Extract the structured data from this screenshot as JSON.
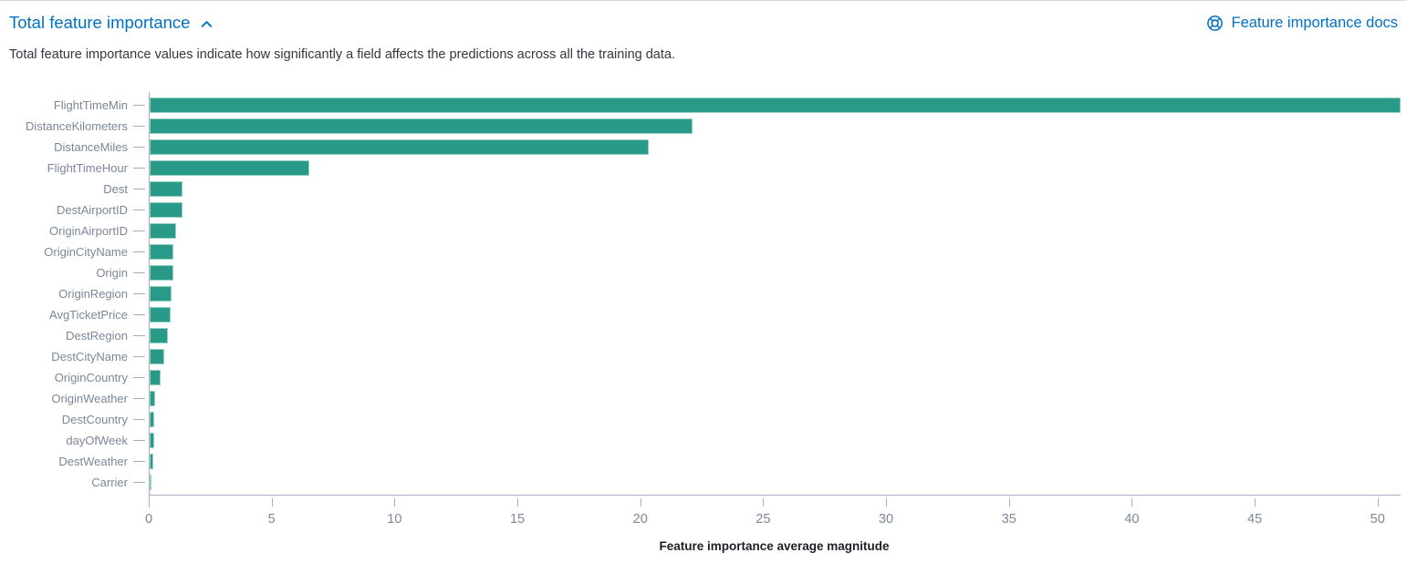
{
  "header": {
    "title": "Total feature importance",
    "collapse_icon": "chevron-up",
    "docs_link_label": "Feature importance docs",
    "docs_icon": "life-ring",
    "link_color": "#0071c2"
  },
  "description": "Total feature importance values indicate how significantly a field affects the predictions across all the training data.",
  "chart_data": {
    "type": "bar",
    "orientation": "horizontal",
    "title": "",
    "xlabel": "Feature importance average magnitude",
    "ylabel": "",
    "categories": [
      "FlightTimeMin",
      "DistanceKilometers",
      "DistanceMiles",
      "FlightTimeHour",
      "Dest",
      "DestAirportID",
      "OriginAirportID",
      "OriginCityName",
      "Origin",
      "OriginRegion",
      "AvgTicketPrice",
      "DestRegion",
      "DestCityName",
      "OriginCountry",
      "OriginWeather",
      "DestCountry",
      "dayOfWeek",
      "DestWeather",
      "Carrier"
    ],
    "values": [
      50.9,
      22.1,
      20.3,
      6.5,
      1.35,
      1.32,
      1.07,
      0.98,
      0.95,
      0.9,
      0.87,
      0.75,
      0.6,
      0.43,
      0.21,
      0.2,
      0.18,
      0.16,
      0.09
    ],
    "xlim": [
      0,
      50.9
    ],
    "xticks": [
      0,
      5,
      10,
      15,
      20,
      25,
      30,
      35,
      40,
      45,
      50
    ],
    "bar_color": "#2a9a88",
    "grid": false,
    "legend": false
  }
}
